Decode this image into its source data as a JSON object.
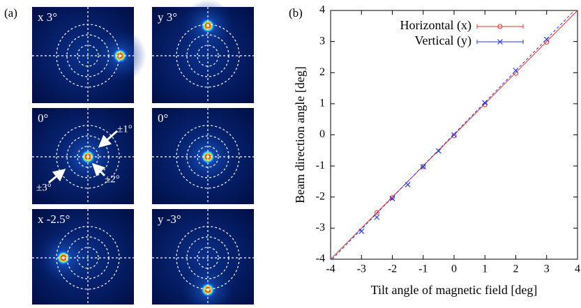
{
  "panel_a": {
    "label": "(a)",
    "images": [
      {
        "label": "x 3°"
      },
      {
        "label": "y 3°"
      },
      {
        "label": "0°"
      },
      {
        "label": "0°"
      },
      {
        "label": "x -2.5°"
      },
      {
        "label": "y -3°"
      }
    ],
    "annotations": [
      "±1°",
      "±2°",
      "±3°"
    ]
  },
  "chart_data": {
    "type": "scatter",
    "label": "(b)",
    "x_label": "Tilt angle of magnetic field [deg]",
    "y_label": "Beam direction angle [deg]",
    "xlim": [
      -4,
      4
    ],
    "ylim": [
      -4,
      4
    ],
    "xticks": [
      -4,
      -3,
      -2,
      -1,
      0,
      1,
      2,
      3,
      4
    ],
    "yticks": [
      -4,
      -3,
      -2,
      -1,
      0,
      1,
      2,
      3,
      4
    ],
    "legend": "top-center",
    "series": [
      {
        "name": "Horizontal (x)",
        "color": "#e8312f",
        "marker": "circle",
        "x": [
          -2.5,
          -2,
          -1,
          0,
          1,
          2,
          3
        ],
        "values": [
          -2.5,
          -2.02,
          -1.02,
          -0.03,
          0.97,
          1.98,
          2.98
        ],
        "fit": {
          "x": [
            -4,
            4
          ],
          "values": [
            -4,
            4
          ]
        }
      },
      {
        "name": "Vertical (y)",
        "color": "#2a3ae0",
        "marker": "x",
        "x": [
          -3,
          -2.5,
          -2,
          -1.5,
          -1,
          -0.5,
          0,
          1,
          2,
          3
        ],
        "values": [
          -3.1,
          -2.65,
          -2.05,
          -1.6,
          -1.03,
          -0.52,
          0.0,
          1.03,
          2.07,
          3.07
        ],
        "fit": {
          "x": [
            -3.95,
            3.9
          ],
          "values": [
            -4,
            4
          ]
        }
      }
    ]
  }
}
